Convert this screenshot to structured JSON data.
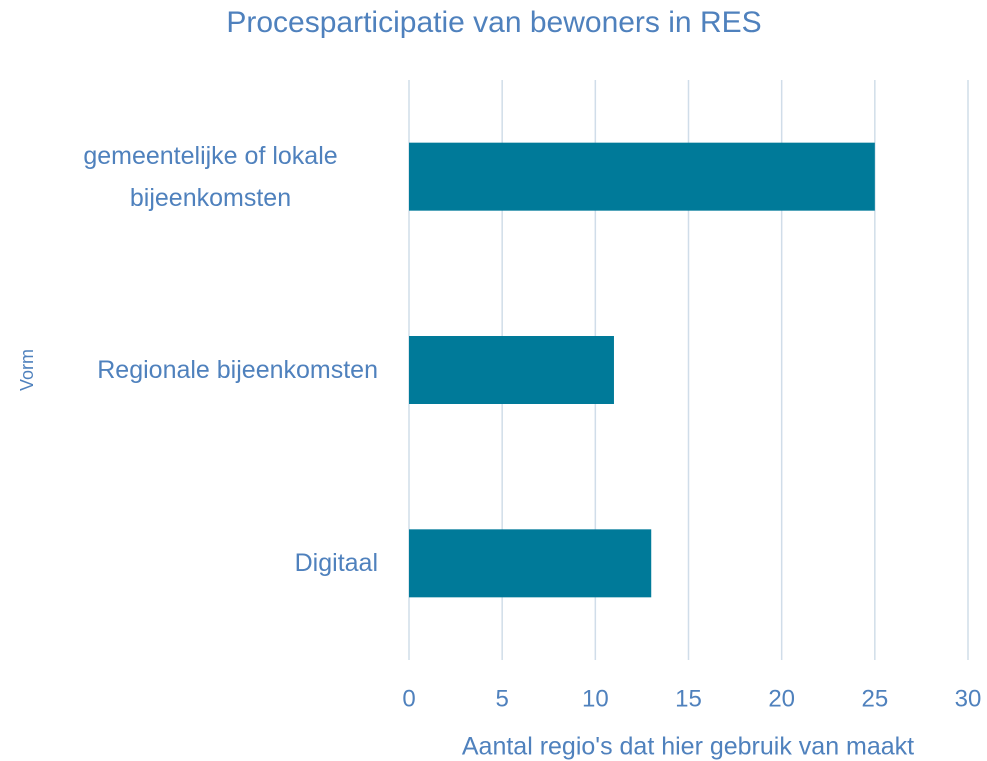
{
  "chart_data": {
    "type": "bar",
    "orientation": "horizontal",
    "title": "Procesparticipatie van bewoners in RES",
    "categories": [
      "gemeentelijke of lokale bijeenkomsten",
      "Regionale bijeenkomsten",
      "Digitaal"
    ],
    "values": [
      25,
      11,
      13
    ],
    "color": "#007a99",
    "xlim": [
      0,
      30
    ],
    "xticks": [
      0,
      5,
      10,
      15,
      20,
      25,
      30
    ],
    "xlabel": "Aantal regio's dat hier gebruik van maakt",
    "ylabel": "Vorm",
    "grid": true
  }
}
